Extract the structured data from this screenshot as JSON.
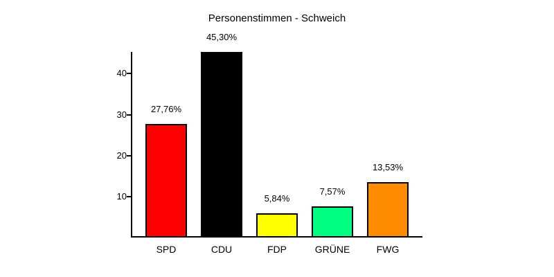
{
  "title": "Personenstimmen - Schweich",
  "chart_data": {
    "type": "bar",
    "title": "Personenstimmen - Schweich",
    "categories": [
      "SPD",
      "CDU",
      "FDP",
      "GRÜNE",
      "FWG"
    ],
    "values": [
      27.76,
      45.3,
      5.84,
      7.57,
      13.53
    ],
    "value_labels": [
      "27,76%",
      "45,30%",
      "5,84%",
      "7,57%",
      "13,53%"
    ],
    "bar_colors": [
      "#ff0000",
      "#000000",
      "#ffff00",
      "#00ff80",
      "#ff8c00"
    ],
    "bar_border_color": "#000000",
    "axis_color": "#000000",
    "background_color": "#ffffff",
    "xlabel": "",
    "ylabel": "",
    "ylim": [
      0,
      45.3
    ],
    "yticks": [
      "10",
      "20",
      "30",
      "40"
    ],
    "grid": false,
    "legend": "none",
    "value_format": "percent-comma-decimal"
  }
}
